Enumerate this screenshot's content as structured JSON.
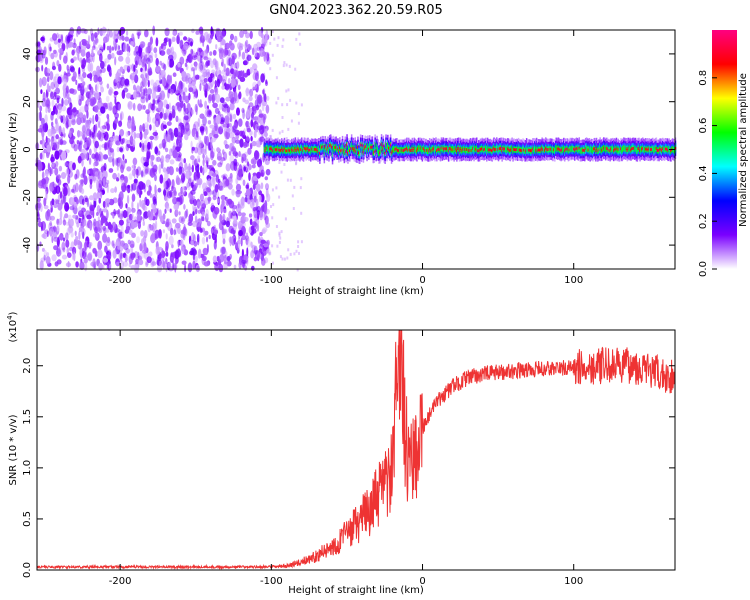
{
  "title": "GN04.2023.362.20.59.R05",
  "chart_data": [
    {
      "type": "heatmap",
      "xlabel": "Height of straight line (km)",
      "ylabel": "Frequency (Hz)",
      "xlim": [
        -255,
        167
      ],
      "ylim": [
        -50,
        50
      ],
      "x_ticks": [
        "-200",
        "-100",
        "0",
        "100"
      ],
      "y_ticks": [
        "-40",
        "-20",
        "0",
        "20",
        "40"
      ],
      "colorbar": {
        "label": "Normalized spectral amplitude",
        "range": [
          0,
          1
        ],
        "ticks": [
          "0.0",
          "0.2",
          "0.4",
          "0.6",
          "0.8"
        ],
        "colors": [
          "#ffffff",
          "#7a00ff",
          "#0000ff",
          "#00ffff",
          "#00ff00",
          "#ffff00",
          "#ff0000",
          "#ff0080"
        ]
      },
      "noise_region_x": [
        -255,
        -102
      ],
      "signal_region_x": [
        -105,
        167
      ],
      "signal_center_hz": 0
    },
    {
      "type": "line",
      "xlabel": "Height of straight line (km)",
      "ylabel": "SNR (10 * v/v)",
      "scale_label": "(x10",
      "scale_exp": "4",
      "scale_close": ")",
      "xlim": [
        -255,
        167
      ],
      "ylim": [
        0,
        2.35
      ],
      "x_ticks": [
        "-200",
        "-100",
        "0",
        "100"
      ],
      "y_ticks": [
        "0.0",
        "0.5",
        "1.0",
        "1.5",
        "2.0"
      ],
      "line_color": "#ee3333",
      "series": [
        {
          "x": [
            -255,
            -150,
            -100,
            -90,
            -80,
            -70,
            -60,
            -50,
            -40,
            -30,
            -20,
            -15,
            -10,
            -5,
            0,
            10,
            20,
            30,
            40,
            60,
            80,
            100,
            120,
            140,
            160,
            167
          ],
          "y": [
            0.03,
            0.03,
            0.03,
            0.04,
            0.08,
            0.14,
            0.22,
            0.35,
            0.5,
            0.7,
            0.95,
            2.3,
            1.05,
            1.2,
            1.4,
            1.65,
            1.8,
            1.88,
            1.92,
            1.95,
            1.97,
            1.98,
            2.0,
            2.0,
            1.9,
            1.9
          ]
        }
      ]
    }
  ]
}
